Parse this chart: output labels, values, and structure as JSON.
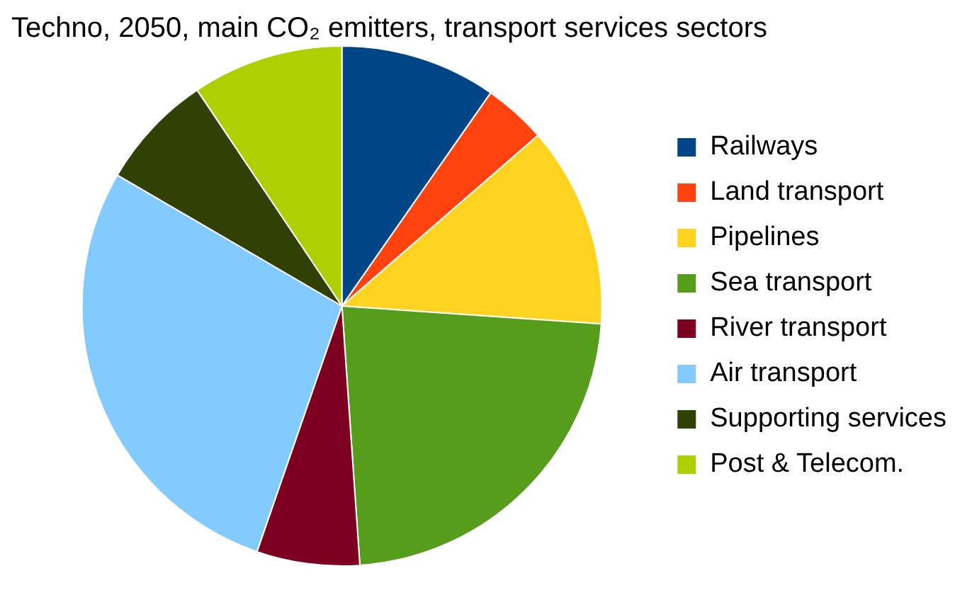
{
  "chart_data": {
    "type": "pie",
    "title": "Techno, 2050, main CO₂ emitters, transport services sectors",
    "categories": [
      "Railways",
      "Land transport",
      "Pipelines",
      "Sea transport",
      "River transport",
      "Air transport",
      "Supporting services",
      "Post & Telecom."
    ],
    "values": [
      9.7,
      3.9,
      12.5,
      22.8,
      6.4,
      28.1,
      7.2,
      9.4
    ],
    "colors": [
      "#004586",
      "#ff420e",
      "#ffd320",
      "#579d1c",
      "#7e0021",
      "#83caff",
      "#314004",
      "#aecf00"
    ],
    "legend": "right"
  }
}
